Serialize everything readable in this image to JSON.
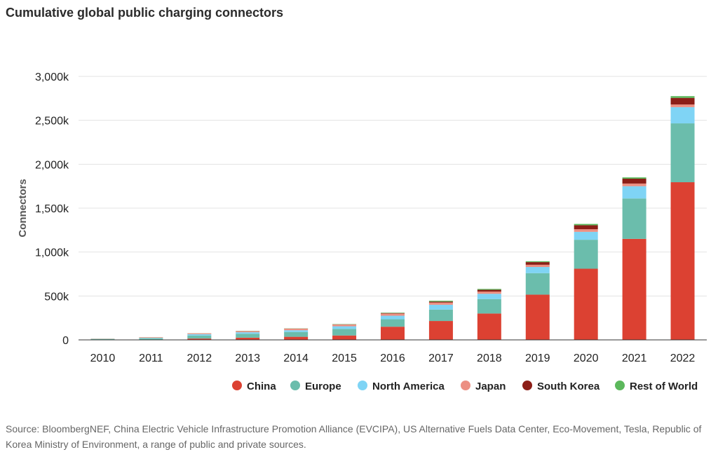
{
  "title": "Cumulative global public charging connectors",
  "source": "Source: BloombergNEF, China Electric Vehicle Infrastructure Promotion Alliance (EVCIPA), US Alternative Fuels Data Center, Eco-Movement, Tesla, Republic of Korea Ministry of Environment, a range of public and private sources.",
  "chart_data": {
    "type": "bar",
    "stacked": true,
    "categories": [
      "2010",
      "2011",
      "2012",
      "2013",
      "2014",
      "2015",
      "2016",
      "2017",
      "2018",
      "2019",
      "2020",
      "2021",
      "2022"
    ],
    "ylabel": "Connectors",
    "xlabel": "",
    "ylim": [
      0,
      3000
    ],
    "yticks": [
      0,
      500,
      1000,
      1500,
      2000,
      2500,
      3000
    ],
    "ytick_labels": [
      "0",
      "500k",
      "1,000k",
      "1,500k",
      "2,000k",
      "2,500k",
      "3,000k"
    ],
    "value_units": "thousand connectors",
    "grid": true,
    "legend_position": "bottom-right",
    "series": [
      {
        "name": "China",
        "color": "#dc4132",
        "values": [
          1,
          3,
          15,
          25,
          35,
          50,
          150,
          215,
          300,
          515,
          810,
          1150,
          1795
        ]
      },
      {
        "name": "Europe",
        "color": "#6bbdac",
        "values": [
          8,
          15,
          35,
          45,
          55,
          75,
          85,
          130,
          165,
          245,
          330,
          460,
          670
        ]
      },
      {
        "name": "North America",
        "color": "#7fd4f5",
        "values": [
          2,
          5,
          15,
          17,
          20,
          30,
          40,
          55,
          60,
          70,
          90,
          140,
          185
        ]
      },
      {
        "name": "Japan",
        "color": "#ec8f82",
        "values": [
          3,
          7,
          10,
          12,
          18,
          20,
          25,
          25,
          25,
          25,
          30,
          30,
          30
        ]
      },
      {
        "name": "South Korea",
        "color": "#8c1e17",
        "values": [
          0,
          0,
          0,
          1,
          1,
          2,
          5,
          10,
          20,
          30,
          45,
          55,
          75
        ]
      },
      {
        "name": "Rest of World",
        "color": "#5cb85c",
        "values": [
          1,
          1,
          1,
          2,
          2,
          3,
          5,
          10,
          10,
          10,
          15,
          15,
          20
        ]
      }
    ]
  }
}
